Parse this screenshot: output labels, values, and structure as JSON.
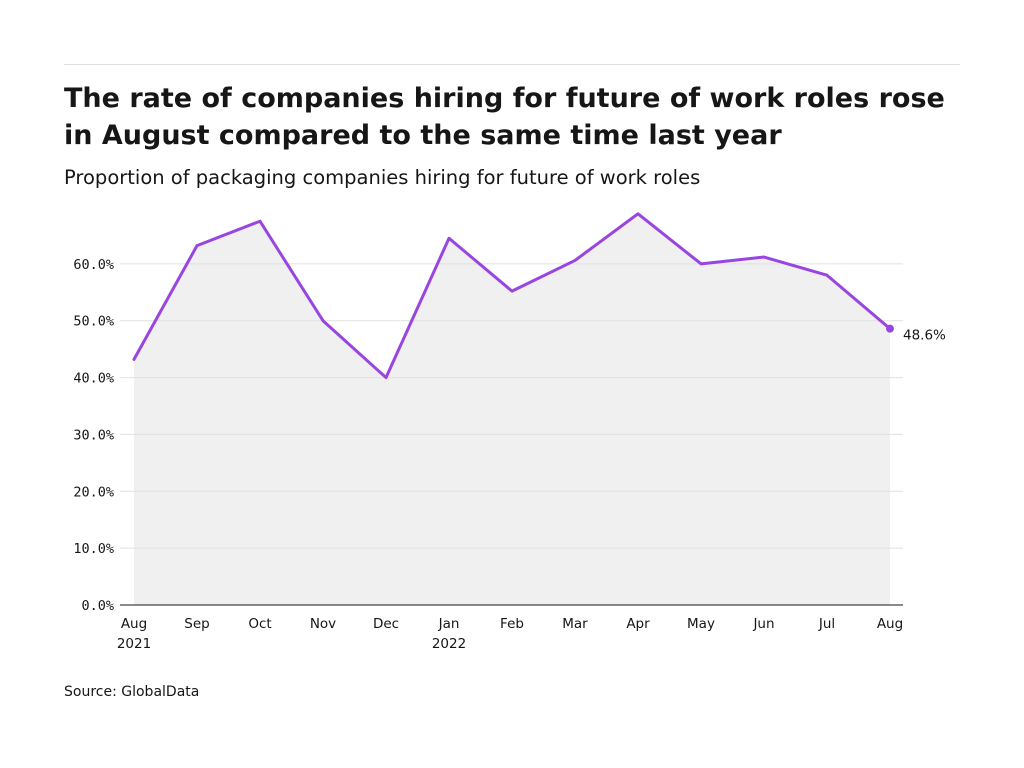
{
  "title": "The rate of companies hiring for future of work roles rose in August compared to the same time last year",
  "subtitle": "Proportion of packaging companies hiring for future of work roles",
  "source": "Source: GlobalData",
  "colors": {
    "line": "#9945e0",
    "area": "#f0f0f0",
    "grid": "#e0e0e0",
    "axis": "#161616"
  },
  "chart_data": {
    "type": "area",
    "categories": [
      "Aug 2021",
      "Sep",
      "Oct",
      "Nov",
      "Dec",
      "Jan 2022",
      "Feb",
      "Mar",
      "Apr",
      "May",
      "Jun",
      "Jul",
      "Aug"
    ],
    "tick_labels": [
      [
        "Aug",
        "2021"
      ],
      [
        "Sep"
      ],
      [
        "Oct"
      ],
      [
        "Nov"
      ],
      [
        "Dec"
      ],
      [
        "Jan",
        "2022"
      ],
      [
        "Feb"
      ],
      [
        "Mar"
      ],
      [
        "Apr"
      ],
      [
        "May"
      ],
      [
        "Jun"
      ],
      [
        "Jul"
      ],
      [
        "Aug"
      ]
    ],
    "values": [
      43.2,
      63.2,
      67.5,
      50.0,
      40.0,
      64.5,
      55.2,
      60.6,
      68.8,
      60.0,
      61.2,
      58.0,
      48.6
    ],
    "y_ticks": [
      0,
      10,
      20,
      30,
      40,
      50,
      60
    ],
    "y_tick_labels": [
      "0.0%",
      "10.0%",
      "20.0%",
      "30.0%",
      "40.0%",
      "50.0%",
      "60.0%"
    ],
    "ylim": [
      0,
      70
    ],
    "end_label": "48.6%",
    "grid": true
  }
}
